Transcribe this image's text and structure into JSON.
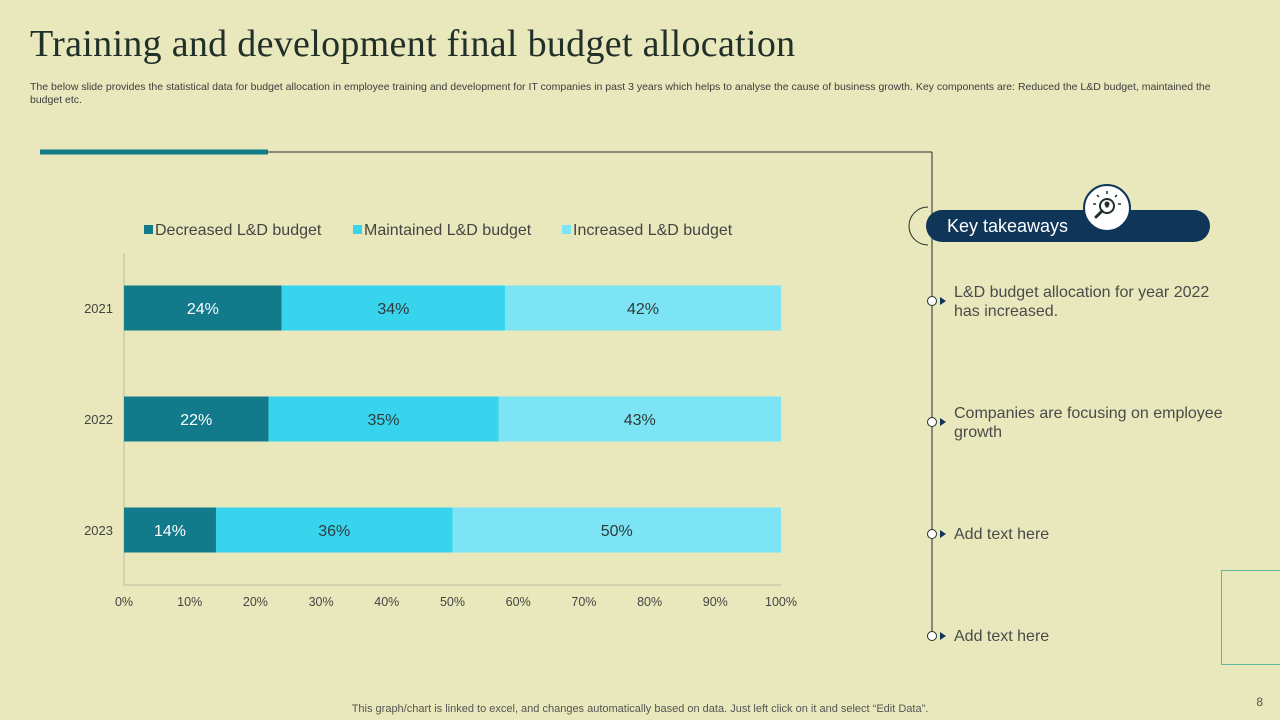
{
  "slide": {
    "title": "Training and development final budget allocation",
    "subtitle": "The below slide provides the statistical data for budget allocation in employee training and development for IT  companies in past 3 years which helps to analyse the cause of business growth. Key components are: Reduced the L&D budget, maintained the budget etc.",
    "footer": "This graph/chart is linked to excel,  and changes automatically based on data. Just left click on it and select “Edit Data”.",
    "page_number": "8"
  },
  "takeaways": {
    "header": "Key takeaways",
    "icon": "lightbulb-magnifier-icon",
    "items": [
      "L&D budget allocation for year 2022 has increased.",
      "Companies are focusing on employee growth",
      "Add text here",
      "Add text here"
    ]
  },
  "colors": {
    "background": "#e8e8bc",
    "dark_navy": "#0f3558",
    "teal_accent": "#137a8c",
    "series": [
      "#137a8c",
      "#38d4ee",
      "#7ce4f5"
    ]
  },
  "chart_data": {
    "type": "bar",
    "orientation": "horizontal",
    "stacked": true,
    "categories": [
      "2021",
      "2022",
      "2023"
    ],
    "series": [
      {
        "name": "Decreased L&D budget",
        "values": [
          24,
          22,
          14
        ],
        "color": "#137a8c"
      },
      {
        "name": "Maintained L&D budget",
        "values": [
          34,
          35,
          36
        ],
        "color": "#38d4ee"
      },
      {
        "name": "Increased L&D budget",
        "values": [
          42,
          43,
          50
        ],
        "color": "#7ce4f5"
      }
    ],
    "data_labels": [
      [
        "24%",
        "22%",
        "14%"
      ],
      [
        "34%",
        "35%",
        "36%"
      ],
      [
        "42%",
        "43%",
        "50%"
      ]
    ],
    "xlim": [
      0,
      100
    ],
    "x_ticks": [
      "0%",
      "10%",
      "20%",
      "30%",
      "40%",
      "50%",
      "60%",
      "70%",
      "80%",
      "90%",
      "100%"
    ],
    "title": "",
    "xlabel": "",
    "ylabel": "",
    "legend_position": "top",
    "grid": false
  }
}
